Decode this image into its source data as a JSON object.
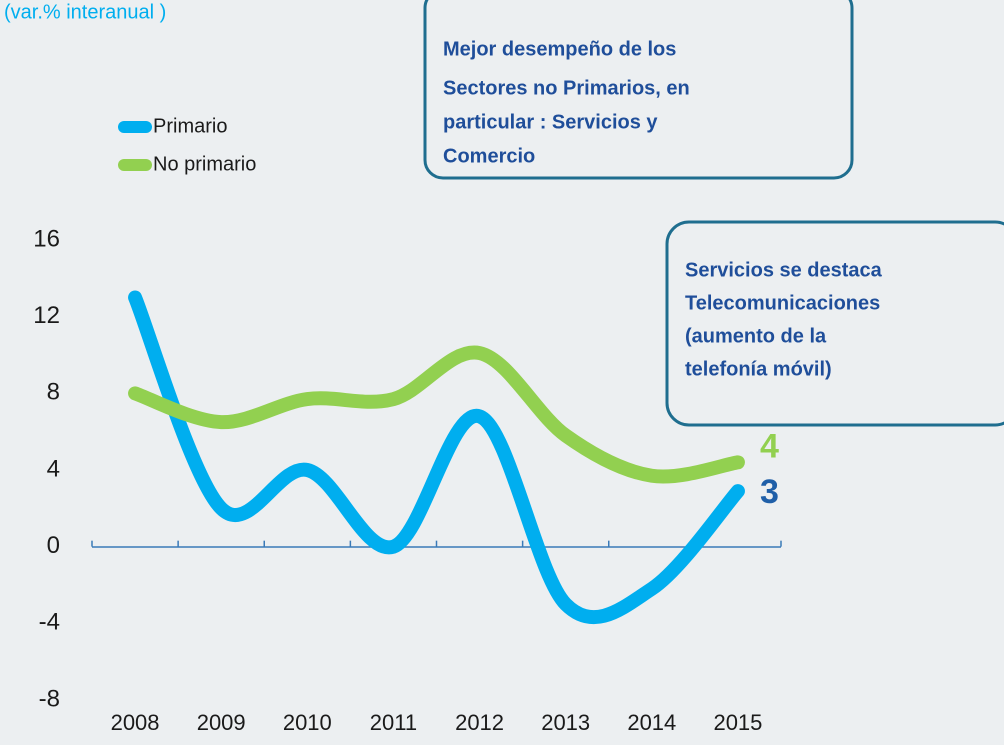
{
  "chart_data": {
    "type": "line",
    "subtitle": "(var.% interanual )",
    "categories": [
      "2008",
      "2009",
      "2010",
      "2011",
      "2012",
      "2013",
      "2014",
      "2015"
    ],
    "series": [
      {
        "name": "Primario",
        "color": "#00aeef",
        "values": [
          13.0,
          2.0,
          4.0,
          0.0,
          6.8,
          -3.0,
          -2.2,
          2.9
        ],
        "value_labels": [
          null,
          null,
          null,
          null,
          null,
          null,
          null,
          "3"
        ],
        "label_color": "#1f5fa8"
      },
      {
        "name": "No primario",
        "color": "#92d050",
        "values": [
          8.0,
          6.5,
          7.7,
          7.7,
          10.1,
          5.8,
          3.7,
          4.4
        ],
        "value_labels": [
          null,
          null,
          null,
          null,
          null,
          null,
          null,
          "4"
        ],
        "label_color": "#92d050"
      }
    ],
    "ylim": [
      -8,
      16
    ],
    "yticks": [
      -8,
      -4,
      0,
      4,
      8,
      12,
      16
    ],
    "annotations": [
      {
        "lines": [
          "Mejor desempeño de los",
          "Sectores no Primarios, en",
          "particular : Servicios y",
          "Comercio"
        ]
      },
      {
        "lines": [
          "Servicios se destaca",
          "Telecomunicaciones",
          "(aumento de la",
          "telefonía móvil)"
        ]
      }
    ]
  }
}
